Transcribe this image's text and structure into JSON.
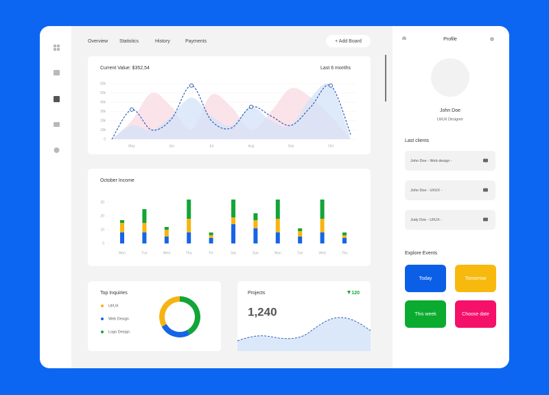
{
  "nav": {
    "tabs": [
      "Overview",
      "Statistics",
      "History",
      "Payments"
    ],
    "add_button": "+ Add Board"
  },
  "value_chart": {
    "type": "area",
    "title": "Current Value: $352,54",
    "period": "Last 6 months",
    "categories": [
      null,
      "May",
      null,
      "Jun",
      null,
      "Jul",
      null,
      "Aug",
      null,
      "Sep",
      null,
      "Oct",
      null
    ],
    "ylim": [
      0,
      60000
    ],
    "yticks": [
      0,
      {
        "value": 10000,
        "label": "10k"
      },
      {
        "value": 20000,
        "label": "20k"
      },
      {
        "value": 30000,
        "label": "30k"
      },
      {
        "value": 40000,
        "label": "40k"
      },
      {
        "value": 50000,
        "label": "50k"
      },
      {
        "value": 60000,
        "label": "60k"
      }
    ],
    "series": [
      {
        "color": "#f9d9e3",
        "values": [
          0,
          20000,
          50000,
          35000,
          10000,
          48000,
          35000,
          10000,
          30000,
          55000,
          45000,
          25000,
          0
        ]
      },
      {
        "color": "#d3e3f8",
        "values": [
          0,
          15000,
          10000,
          25000,
          45000,
          25000,
          15000,
          35000,
          20000,
          15000,
          45000,
          58000,
          0
        ]
      },
      {
        "color": "#2d5db5",
        "style": "dashed",
        "values": [
          0,
          32000,
          10000,
          22000,
          58000,
          20000,
          12000,
          35000,
          25000,
          15000,
          35000,
          58000,
          5000
        ]
      }
    ]
  },
  "income_chart": {
    "type": "bar",
    "stacked": true,
    "title": "October Income",
    "categories": [
      "Mon",
      "Tue",
      "Wed",
      "Thu",
      "Fri",
      "Sat",
      "Sun",
      "Mon",
      "Tue",
      "Wed",
      "Thu"
    ],
    "ylim": [
      0,
      35
    ],
    "yticks": [
      0,
      10,
      20,
      30
    ],
    "series": [
      {
        "color": "#1565e6",
        "values": [
          8,
          8,
          5,
          8,
          4,
          14,
          11,
          8,
          5,
          8,
          4
        ]
      },
      {
        "color": "#f6b412",
        "values": [
          7,
          7,
          5,
          10,
          2,
          5,
          6,
          10,
          4,
          10,
          2
        ]
      },
      {
        "color": "#12a538",
        "values": [
          2,
          10,
          2,
          14,
          2,
          13,
          5,
          14,
          2,
          14,
          2
        ]
      }
    ]
  },
  "inquiries": {
    "type": "pie",
    "donut": true,
    "title": "Top Inquiries",
    "categories": [
      "UI/UX",
      "Web Design",
      "Logo Design"
    ],
    "values": [
      33,
      25,
      42
    ],
    "colors": [
      "#f6b412",
      "#1565e6",
      "#12a538"
    ],
    "legend_colors": [
      "#f6b412",
      "#12a538",
      "#1565e6"
    ]
  },
  "projects": {
    "title": "Projects",
    "value": "1,240",
    "change": "120"
  },
  "profile": {
    "title": "Profile",
    "name": "John Doe",
    "role": "UI/UX Designer"
  },
  "clients": {
    "title": "Last clients",
    "items": [
      "John Doe - Web design -",
      "John Doe - UI/UX -",
      "Judy Doe - UI/UX -"
    ]
  },
  "events": {
    "title": "Explore Events",
    "buttons": [
      {
        "label": "Today",
        "color": "#0b5fe6"
      },
      {
        "label": "Tomorrow",
        "color": "#f8b90f"
      },
      {
        "label": "This week",
        "color": "#0bab30"
      },
      {
        "label": "Choose date",
        "color": "#f5106a"
      }
    ]
  }
}
